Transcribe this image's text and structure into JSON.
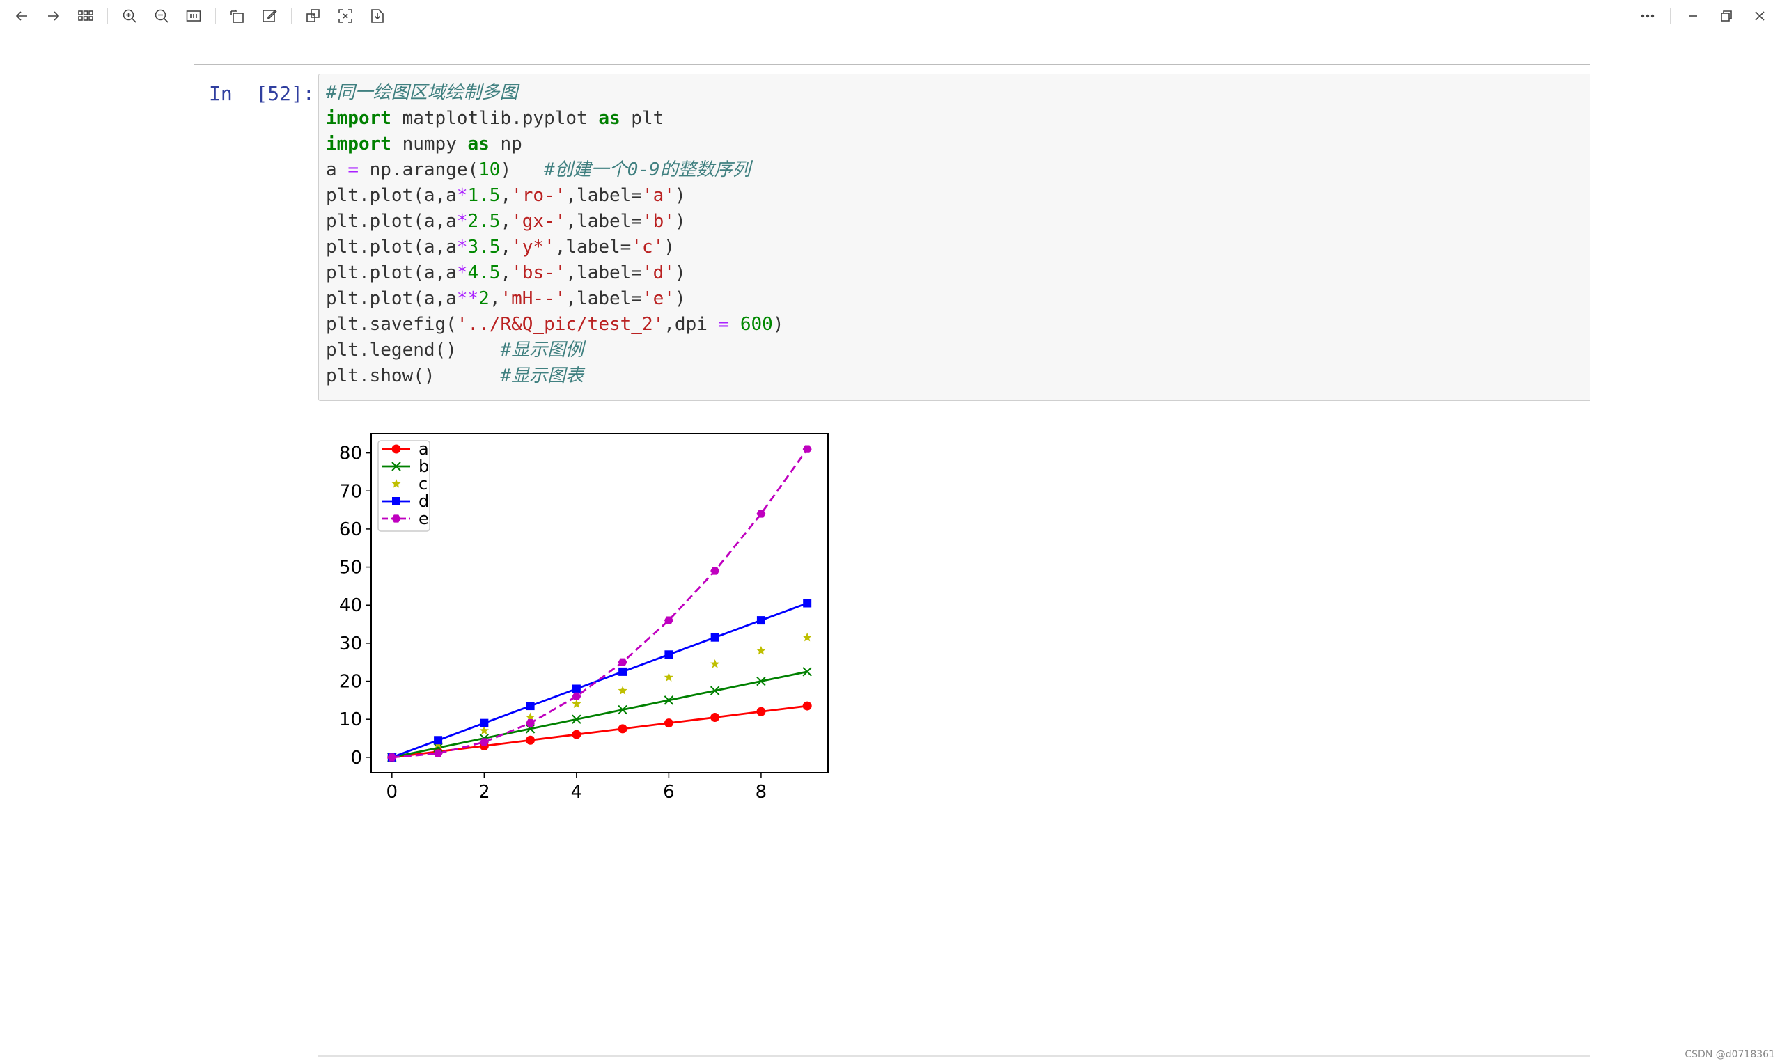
{
  "prompt": {
    "label": "In  [52]:"
  },
  "code_lines": [
    [
      {
        "t": "#同一绘图区域绘制多图",
        "c": "cm"
      }
    ],
    [
      {
        "t": "import",
        "c": "kw"
      },
      {
        "t": " matplotlib.pyplot ",
        "c": ""
      },
      {
        "t": "as",
        "c": "kw"
      },
      {
        "t": " plt",
        "c": ""
      }
    ],
    [
      {
        "t": "import",
        "c": "kw"
      },
      {
        "t": " numpy ",
        "c": ""
      },
      {
        "t": "as",
        "c": "kw"
      },
      {
        "t": " np",
        "c": ""
      }
    ],
    [
      {
        "t": "a ",
        "c": ""
      },
      {
        "t": "=",
        "c": "op"
      },
      {
        "t": " np.arange(",
        "c": ""
      },
      {
        "t": "10",
        "c": "nm"
      },
      {
        "t": ")   ",
        "c": ""
      },
      {
        "t": "#创建一个0-9的整数序列",
        "c": "cm"
      }
    ],
    [
      {
        "t": "plt.plot(a,a",
        "c": ""
      },
      {
        "t": "*",
        "c": "op"
      },
      {
        "t": "1.5",
        "c": "nm"
      },
      {
        "t": ",",
        "c": ""
      },
      {
        "t": "'ro-'",
        "c": "st"
      },
      {
        "t": ",label=",
        "c": ""
      },
      {
        "t": "'a'",
        "c": "st"
      },
      {
        "t": ")",
        "c": ""
      }
    ],
    [
      {
        "t": "plt.plot(a,a",
        "c": ""
      },
      {
        "t": "*",
        "c": "op"
      },
      {
        "t": "2.5",
        "c": "nm"
      },
      {
        "t": ",",
        "c": ""
      },
      {
        "t": "'gx-'",
        "c": "st"
      },
      {
        "t": ",label=",
        "c": ""
      },
      {
        "t": "'b'",
        "c": "st"
      },
      {
        "t": ")",
        "c": ""
      }
    ],
    [
      {
        "t": "plt.plot(a,a",
        "c": ""
      },
      {
        "t": "*",
        "c": "op"
      },
      {
        "t": "3.5",
        "c": "nm"
      },
      {
        "t": ",",
        "c": ""
      },
      {
        "t": "'y*'",
        "c": "st"
      },
      {
        "t": ",label=",
        "c": ""
      },
      {
        "t": "'c'",
        "c": "st"
      },
      {
        "t": ")",
        "c": ""
      }
    ],
    [
      {
        "t": "plt.plot(a,a",
        "c": ""
      },
      {
        "t": "*",
        "c": "op"
      },
      {
        "t": "4.5",
        "c": "nm"
      },
      {
        "t": ",",
        "c": ""
      },
      {
        "t": "'bs-'",
        "c": "st"
      },
      {
        "t": ",label=",
        "c": ""
      },
      {
        "t": "'d'",
        "c": "st"
      },
      {
        "t": ")",
        "c": ""
      }
    ],
    [
      {
        "t": "plt.plot(a,a",
        "c": ""
      },
      {
        "t": "**",
        "c": "op"
      },
      {
        "t": "2",
        "c": "nm"
      },
      {
        "t": ",",
        "c": ""
      },
      {
        "t": "'mH--'",
        "c": "st"
      },
      {
        "t": ",label=",
        "c": ""
      },
      {
        "t": "'e'",
        "c": "st"
      },
      {
        "t": ")",
        "c": ""
      }
    ],
    [
      {
        "t": "plt.savefig(",
        "c": ""
      },
      {
        "t": "'../R&Q_pic/test_2'",
        "c": "st"
      },
      {
        "t": ",dpi ",
        "c": ""
      },
      {
        "t": "=",
        "c": "op"
      },
      {
        "t": " ",
        "c": ""
      },
      {
        "t": "600",
        "c": "nm"
      },
      {
        "t": ")",
        "c": ""
      }
    ],
    [
      {
        "t": "plt.legend()    ",
        "c": ""
      },
      {
        "t": "#显示图例",
        "c": "cm"
      }
    ],
    [
      {
        "t": "plt.show()      ",
        "c": ""
      },
      {
        "t": "#显示图表",
        "c": "cm"
      }
    ]
  ],
  "watermark": "CSDN @d0718361",
  "chart_data": {
    "type": "line",
    "x": [
      0,
      1,
      2,
      3,
      4,
      5,
      6,
      7,
      8,
      9
    ],
    "xlim": [
      -0.45,
      9.45
    ],
    "ylim": [
      -4.05,
      85.05
    ],
    "xticks": [
      0,
      2,
      4,
      6,
      8
    ],
    "yticks": [
      0,
      10,
      20,
      30,
      40,
      50,
      60,
      70,
      80
    ],
    "legend_position": "upper-left",
    "series": [
      {
        "name": "a",
        "color": "#ff0000",
        "marker": "circle",
        "line": "solid",
        "values": [
          0,
          1.5,
          3,
          4.5,
          6,
          7.5,
          9,
          10.5,
          12,
          13.5
        ]
      },
      {
        "name": "b",
        "color": "#008000",
        "marker": "x",
        "line": "solid",
        "values": [
          0,
          2.5,
          5,
          7.5,
          10,
          12.5,
          15,
          17.5,
          20,
          22.5
        ]
      },
      {
        "name": "c",
        "color": "#bfbf00",
        "marker": "star",
        "line": "none",
        "values": [
          0,
          3.5,
          7,
          10.5,
          14,
          17.5,
          21,
          24.5,
          28,
          31.5
        ]
      },
      {
        "name": "d",
        "color": "#0000ff",
        "marker": "square",
        "line": "solid",
        "values": [
          0,
          4.5,
          9,
          13.5,
          18,
          22.5,
          27,
          31.5,
          36,
          40.5
        ]
      },
      {
        "name": "e",
        "color": "#bf00bf",
        "marker": "hexagon",
        "line": "dashed",
        "values": [
          0,
          1,
          4,
          9,
          16,
          25,
          36,
          49,
          64,
          81
        ]
      }
    ]
  }
}
